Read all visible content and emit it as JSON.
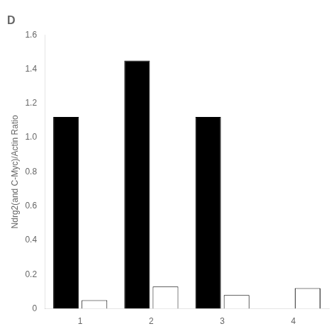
{
  "chart_data": {
    "type": "bar",
    "title": "D",
    "categories": [
      "1",
      "2",
      "3",
      "4"
    ],
    "series": [
      {
        "color": "#000000",
        "values": [
          1.12,
          1.45,
          1.12,
          0.0
        ]
      },
      {
        "color": "#ffffff",
        "values": [
          0.05,
          0.13,
          0.08,
          0.12
        ]
      }
    ],
    "ylabel": "Ndrg2(and C-Myc)/Actin Ratio",
    "ylim": [
      0,
      1.6
    ],
    "yticks": [
      0,
      0.2,
      0.4,
      0.6,
      0.8,
      {
        "value": 1.0,
        "label": "1.0"
      },
      1.2,
      1.4,
      1.6
    ],
    "grid": false
  }
}
